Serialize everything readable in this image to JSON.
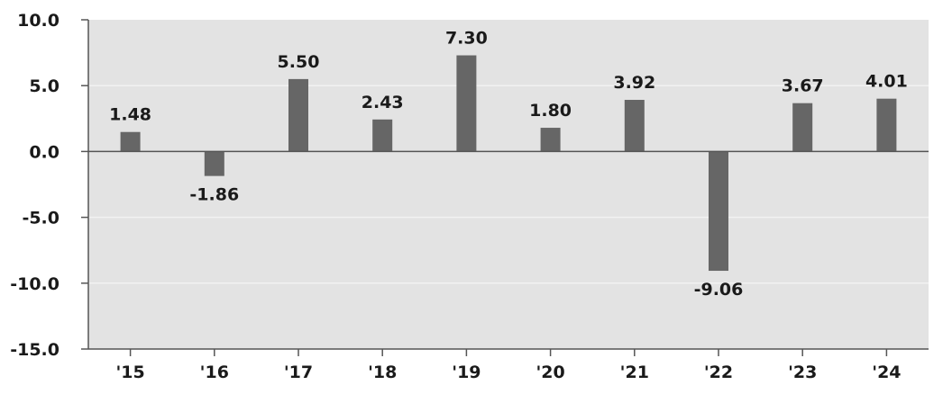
{
  "chart_data": {
    "type": "bar",
    "categories": [
      "'15",
      "'16",
      "'17",
      "'18",
      "'19",
      "'20",
      "'21",
      "'22",
      "'23",
      "'24"
    ],
    "values": [
      1.48,
      -1.86,
      5.5,
      2.43,
      7.3,
      1.8,
      3.92,
      -9.06,
      3.67,
      4.01
    ],
    "data_labels": [
      "1.48",
      "-1.86",
      "5.50",
      "2.43",
      "7.30",
      "1.80",
      "3.92",
      "-9.06",
      "3.67",
      "4.01"
    ],
    "y_ticks": [
      10,
      5,
      0,
      -5,
      -10,
      -15
    ],
    "y_tick_labels": [
      "10.0",
      "5.0",
      "0.0",
      "-5.0",
      "-10.0",
      "-15.0"
    ],
    "ylim": [
      -15,
      10
    ],
    "title": "",
    "xlabel": "",
    "ylabel": "",
    "grid": true,
    "legend": "none",
    "colors": {
      "bar": "#666666",
      "plot_background": "#e3e3e3",
      "gridline": "#f2f2f2",
      "axis": "#555555",
      "text": "#1a1a1a"
    }
  }
}
